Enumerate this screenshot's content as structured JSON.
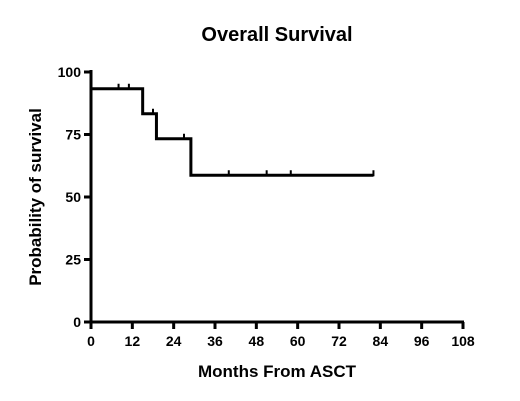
{
  "chart_data": {
    "type": "line",
    "subtype": "kaplan-meier-step",
    "title": "Overall Survival",
    "xlabel": "Months From ASCT",
    "ylabel": "Probability of survival",
    "xlim": [
      0,
      108
    ],
    "ylim": [
      0,
      100
    ],
    "xticks": [
      0,
      12,
      24,
      36,
      48,
      60,
      72,
      84,
      96,
      108
    ],
    "yticks": [
      0,
      25,
      50,
      75,
      100
    ],
    "grid": false,
    "legend": "none",
    "steps": [
      {
        "x": 0,
        "y": 93.3
      },
      {
        "x": 15,
        "y": 83.3
      },
      {
        "x": 19,
        "y": 73.3
      },
      {
        "x": 29,
        "y": 58.7
      }
    ],
    "end_x": 82,
    "censored": [
      {
        "x": 8,
        "y": 93.3
      },
      {
        "x": 11,
        "y": 93.3
      },
      {
        "x": 18,
        "y": 83.3
      },
      {
        "x": 27,
        "y": 73.3
      },
      {
        "x": 40,
        "y": 58.7
      },
      {
        "x": 51,
        "y": 58.7
      },
      {
        "x": 58,
        "y": 58.7
      },
      {
        "x": 82,
        "y": 58.7
      }
    ]
  }
}
